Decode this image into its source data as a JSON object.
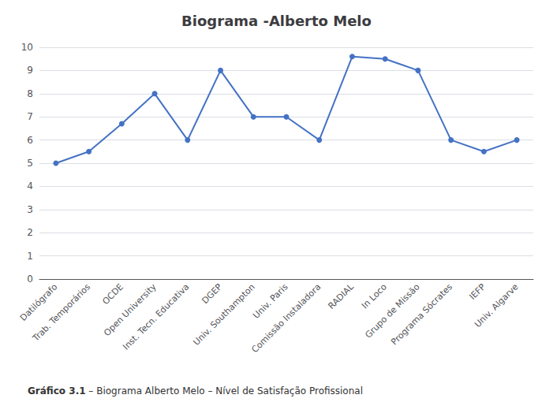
{
  "chart_data": {
    "type": "line",
    "title": "Biograma -Alberto Melo",
    "categories": [
      "Datilógrafo",
      "Trab. Temporários",
      "OCDE",
      "Open University",
      "Inst. Tecn. Educativa",
      "DGEP",
      "Univ. Southampton",
      "Univ. Paris",
      "Comissão Instaladora",
      "RADIAL",
      "In Loco",
      "Grupo de Missão",
      "Programa Sócrates",
      "IEFP",
      "Univ. Algarve"
    ],
    "values": [
      5,
      5.5,
      6.7,
      8,
      6,
      9,
      7,
      7,
      6,
      9.6,
      9.5,
      9,
      6,
      5.5,
      6
    ],
    "color": "#4472C4",
    "marker": "circle",
    "ylim": [
      0,
      10
    ],
    "yticks": [
      0,
      1,
      2,
      3,
      4,
      5,
      6,
      7,
      8,
      9,
      10
    ],
    "grid": true,
    "caption": [
      "Gráfico 3.1",
      " – Biograma Alberto Melo – Nível de Satisfação Profissional"
    ]
  }
}
